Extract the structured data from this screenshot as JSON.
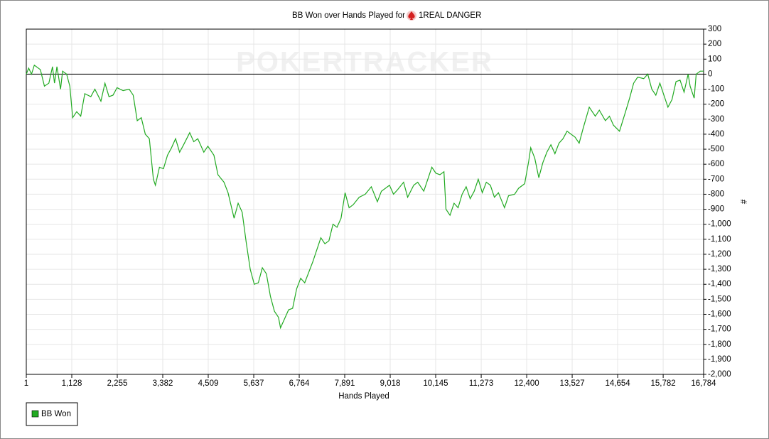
{
  "chart_data": {
    "type": "line",
    "title": "BB Won over Hands Played for",
    "player": "1REAL DANGER",
    "watermark": "POKERTRACKER",
    "x_label": "Hands Played",
    "y_label": "#",
    "x": [
      1,
      60,
      130,
      200,
      350,
      450,
      560,
      650,
      700,
      760,
      850,
      900,
      1000,
      1080,
      1150,
      1250,
      1350,
      1450,
      1600,
      1700,
      1850,
      1950,
      2050,
      2150,
      2250,
      2400,
      2550,
      2650,
      2750,
      2850,
      2950,
      3050,
      3150,
      3200,
      3300,
      3400,
      3500,
      3600,
      3700,
      3800,
      3900,
      4050,
      4150,
      4250,
      4400,
      4500,
      4650,
      4750,
      4900,
      5000,
      5150,
      5250,
      5350,
      5450,
      5550,
      5650,
      5750,
      5850,
      5950,
      6050,
      6150,
      6250,
      6300,
      6400,
      6500,
      6600,
      6700,
      6800,
      6900,
      7000,
      7100,
      7200,
      7300,
      7400,
      7500,
      7600,
      7700,
      7800,
      7900,
      8000,
      8100,
      8250,
      8400,
      8550,
      8700,
      8800,
      9000,
      9100,
      9200,
      9350,
      9450,
      9600,
      9700,
      9850,
      9950,
      10050,
      10150,
      10250,
      10350,
      10400,
      10500,
      10600,
      10700,
      10800,
      10900,
      11000,
      11100,
      11200,
      11300,
      11400,
      11500,
      11600,
      11700,
      11850,
      11950,
      12100,
      12200,
      12350,
      12450,
      12500,
      12600,
      12700,
      12800,
      12900,
      13000,
      13100,
      13200,
      13300,
      13400,
      13600,
      13700,
      13800,
      13950,
      14100,
      14200,
      14350,
      14450,
      14550,
      14700,
      14850,
      14950,
      15050,
      15150,
      15300,
      15400,
      15500,
      15600,
      15700,
      15800,
      15900,
      16000,
      16100,
      16200,
      16300,
      16400,
      16450,
      16550,
      16600,
      16700,
      16784
    ],
    "series": [
      {
        "name": "BB Won",
        "color": "#22aa22",
        "values": [
          0,
          40,
          0,
          60,
          30,
          -80,
          -60,
          50,
          -60,
          50,
          -100,
          20,
          0,
          -80,
          -290,
          -250,
          -280,
          -130,
          -150,
          -100,
          -180,
          -60,
          -150,
          -140,
          -90,
          -110,
          -100,
          -140,
          -310,
          -290,
          -400,
          -430,
          -700,
          -740,
          -620,
          -630,
          -540,
          -490,
          -430,
          -520,
          -470,
          -390,
          -450,
          -430,
          -520,
          -480,
          -540,
          -670,
          -720,
          -790,
          -960,
          -860,
          -920,
          -1120,
          -1300,
          -1400,
          -1390,
          -1290,
          -1330,
          -1480,
          -1580,
          -1620,
          -1690,
          -1630,
          -1570,
          -1560,
          -1430,
          -1360,
          -1390,
          -1320,
          -1250,
          -1170,
          -1090,
          -1130,
          -1110,
          -1000,
          -1020,
          -960,
          -790,
          -890,
          -870,
          -820,
          -800,
          -750,
          -850,
          -780,
          -740,
          -800,
          -770,
          -720,
          -820,
          -740,
          -720,
          -780,
          -700,
          -620,
          -660,
          -670,
          -650,
          -900,
          -940,
          -860,
          -890,
          -800,
          -750,
          -830,
          -780,
          -700,
          -790,
          -720,
          -740,
          -820,
          -790,
          -890,
          -810,
          -800,
          -760,
          -730,
          -580,
          -490,
          -560,
          -690,
          -590,
          -520,
          -470,
          -530,
          -460,
          -430,
          -380,
          -420,
          -460,
          -360,
          -220,
          -280,
          -240,
          -310,
          -280,
          -340,
          -380,
          -250,
          -160,
          -60,
          -20,
          -30,
          0,
          -100,
          -140,
          -60,
          -140,
          -220,
          -170,
          -50,
          -40,
          -120,
          0,
          -80,
          -160,
          0,
          20,
          20
        ]
      }
    ],
    "xlim": [
      1,
      16784
    ],
    "xticks": [
      1,
      {
        "value": 1128,
        "label": "1,128"
      },
      {
        "value": 2255,
        "label": "2,255"
      },
      {
        "value": 3382,
        "label": "3,382"
      },
      {
        "value": 4509,
        "label": "4,509"
      },
      {
        "value": 5637,
        "label": "5,637"
      },
      {
        "value": 6764,
        "label": "6,764"
      },
      {
        "value": 7891,
        "label": "7,891"
      },
      {
        "value": 9018,
        "label": "9,018"
      },
      {
        "value": 10145,
        "label": "10,145"
      },
      {
        "value": 11273,
        "label": "11,273"
      },
      {
        "value": 12400,
        "label": "12,400"
      },
      {
        "value": 13527,
        "label": "13,527"
      },
      {
        "value": 14654,
        "label": "14,654"
      },
      {
        "value": 15782,
        "label": "15,782"
      },
      {
        "value": 16784,
        "label": "16,784"
      }
    ],
    "ylim": [
      -2000,
      300
    ],
    "yticks": [
      300,
      200,
      100,
      0,
      -100,
      -200,
      -300,
      -400,
      -500,
      -600,
      -700,
      -800,
      -900,
      {
        "value": -1000,
        "label": "-1,000"
      },
      {
        "value": -1100,
        "label": "-1,100"
      },
      {
        "value": -1200,
        "label": "-1,200"
      },
      {
        "value": -1300,
        "label": "-1,300"
      },
      {
        "value": -1400,
        "label": "-1,400"
      },
      {
        "value": -1500,
        "label": "-1,500"
      },
      {
        "value": -1600,
        "label": "-1,600"
      },
      {
        "value": -1700,
        "label": "-1,700"
      },
      {
        "value": -1800,
        "label": "-1,800"
      },
      {
        "value": -1900,
        "label": "-1,900"
      },
      {
        "value": -2000,
        "label": "-2,000"
      }
    ],
    "grid": true,
    "zero_line": true,
    "legend": "bottom-left"
  }
}
